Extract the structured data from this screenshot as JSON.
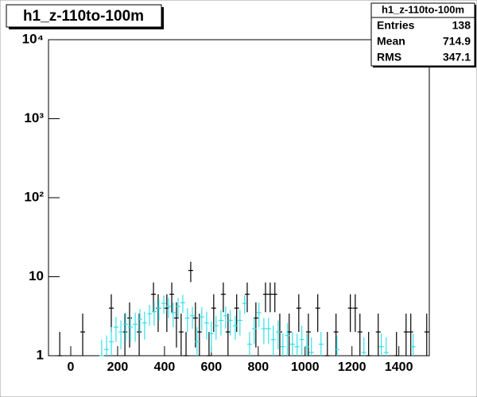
{
  "chart_data": {
    "type": "errorbar",
    "title": "h1_z-110to-100m",
    "stats": [
      {
        "label": "Entries",
        "value": 138
      },
      {
        "label": "Mean",
        "value": 714.9
      },
      {
        "label": "RMS",
        "value": 347.1
      }
    ],
    "log_y": true,
    "xlim": [
      -95,
      1530
    ],
    "xticks": [
      0,
      200,
      400,
      600,
      800,
      1000,
      1200,
      1400
    ],
    "ylim": [
      1,
      10000
    ],
    "yticks": [
      {
        "value": 1,
        "label": "1"
      },
      {
        "value": 10,
        "label": "10"
      },
      {
        "value": 100,
        "label": "10²"
      },
      {
        "value": 1000,
        "label": "10³"
      },
      {
        "value": 10000,
        "label": "10⁴"
      }
    ],
    "series": [
      {
        "color": "#000000",
        "x": [
          -47,
          51,
          173,
          231,
          251,
          292,
          353,
          373,
          410,
          431,
          451,
          471,
          492,
          512,
          532,
          549,
          590,
          610,
          651,
          671,
          708,
          753,
          790,
          831,
          851,
          871,
          892,
          932,
          973,
          1014,
          1054,
          1095,
          1132,
          1193,
          1214,
          1234,
          1271,
          1312,
          1390,
          1431,
          1451,
          1519
        ],
        "values": [
          1,
          2,
          4,
          2,
          3,
          2,
          6,
          4,
          4,
          6,
          3,
          2,
          1,
          12,
          3,
          2,
          1,
          4,
          6,
          2,
          4,
          6,
          3,
          6,
          6,
          6,
          2,
          2,
          4,
          2,
          4,
          1,
          2,
          4,
          4,
          2,
          1,
          2,
          1,
          2,
          2,
          2
        ],
        "errors": [
          1,
          1.41,
          2,
          1.41,
          1.73,
          1.41,
          2.45,
          2,
          2,
          2.45,
          1.73,
          1.41,
          1,
          3.46,
          1.73,
          1.41,
          1,
          2,
          2.45,
          1.41,
          2,
          2.45,
          1.73,
          2.45,
          2.45,
          2.45,
          1.41,
          1.41,
          2,
          1.41,
          2,
          1,
          1.41,
          2,
          2,
          1.41,
          1,
          1.41,
          1,
          1.41,
          1.41,
          1.41
        ]
      },
      {
        "color": "#33e0e8",
        "x": [
          132,
          153,
          173,
          193,
          214,
          234,
          254,
          275,
          295,
          315,
          336,
          356,
          376,
          397,
          417,
          437,
          458,
          478,
          498,
          519,
          539,
          559,
          580,
          600,
          620,
          641,
          661,
          681,
          702,
          722,
          742,
          763,
          783,
          803,
          824,
          844,
          864,
          885,
          905,
          925,
          946,
          966,
          986,
          1007,
          1027,
          1068,
          1136,
          1251,
          1325,
          1346,
          1461
        ],
        "values": [
          1,
          1.2,
          1.5,
          2.3,
          2,
          2.5,
          2.3,
          2.5,
          2.9,
          2.6,
          3.4,
          3.6,
          4,
          4.6,
          4.2,
          3.5,
          4.2,
          4.7,
          3,
          3.2,
          1.5,
          3.1,
          2.6,
          1.9,
          2.4,
          2.8,
          3.2,
          2.8,
          2.4,
          2.8,
          4.6,
          1.4,
          2.2,
          3.5,
          2.2,
          2.2,
          1.6,
          2,
          1.3,
          1.8,
          1.4,
          1.3,
          1.6,
          1.3,
          1.1,
          1.4,
          1.2,
          1.1,
          1.3,
          1.1,
          1.3
        ],
        "errors": [
          0.6,
          0.6,
          0.8,
          0.8,
          0.8,
          1,
          0.8,
          1,
          1,
          1,
          1,
          1.2,
          1.2,
          1.2,
          1.2,
          1.2,
          1.2,
          1.2,
          1,
          1,
          0.8,
          1,
          1,
          0.8,
          0.8,
          1,
          1,
          1,
          0.8,
          1,
          1.2,
          0.6,
          0.8,
          1.2,
          0.8,
          0.8,
          0.8,
          0.8,
          0.6,
          0.8,
          0.6,
          0.6,
          0.8,
          0.6,
          0.6,
          0.6,
          0.6,
          0.6,
          0.6,
          0.6,
          0.6
        ]
      }
    ]
  }
}
